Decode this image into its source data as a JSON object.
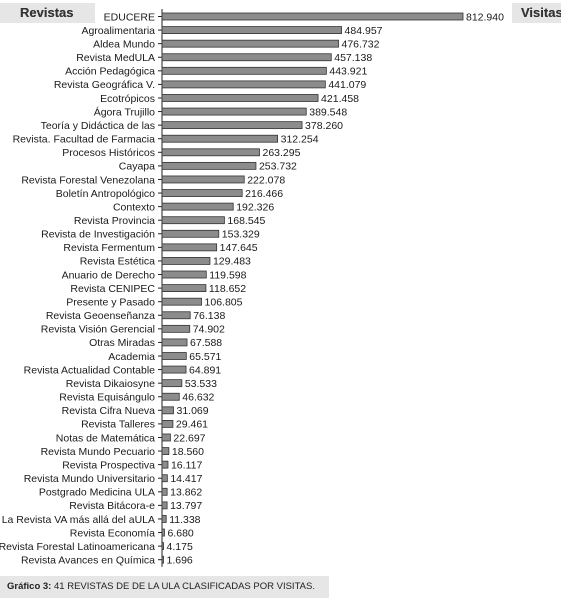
{
  "header": {
    "left_label": "Revistas",
    "right_label": "Visitas"
  },
  "caption": {
    "label": "Gráfico 3:",
    "text": "41 REVISTAS DE DE LA ULA CLASIFICADAS POR VISITAS."
  },
  "colors": {
    "bar_fill": "#8c8c8c",
    "bar_stroke": "#333333",
    "axis": "#222222",
    "header_bg": "#e6e6e6"
  },
  "chart_data": {
    "type": "bar",
    "orientation": "horizontal",
    "categories": [
      "EDUCERE",
      "Agroalimentaria",
      "Aldea Mundo",
      "Revista MedULA",
      "Acción Pedagógica",
      "Revista Geográfica V.",
      "Ecotrópicos",
      "Ágora Trujillo",
      "Teoría y Didáctica de las",
      "Revista. Facultad de Farmacia",
      "Procesos Históricos",
      "Cayapa",
      "Revista Forestal Venezolana",
      "Boletín Antropológico",
      "Contexto",
      "Revista Provincia",
      "Revista de Investigación",
      "Revista Fermentum",
      "Revista Estética",
      "Anuario de Derecho",
      "Revista CENIPEC",
      "Presente y Pasado",
      "Revista Geoenseñanza",
      "Revista Visión Gerencial",
      "Otras Miradas",
      "Academia",
      "Revista Actualidad Contable",
      "Revista Dikaiosyne",
      "Revista Equisángulo",
      "Revista Cifra Nueva",
      "Revista Talleres",
      "Notas de Matemática",
      "Revista Mundo Pecuario",
      "Revista Prospectiva",
      "Revista Mundo Universitario",
      "Postgrado Medicina ULA",
      "Revista Bitácora-e",
      "La Revista VA más allá del aULA",
      "Revista  Economía",
      "Revista  Forestal Latinoamericana",
      "Revista  Avances en Química"
    ],
    "values": [
      812940,
      484957,
      476732,
      457138,
      443921,
      441079,
      421458,
      389548,
      378260,
      312254,
      263295,
      253732,
      222078,
      216466,
      192326,
      168545,
      153329,
      147645,
      129483,
      119598,
      118652,
      106805,
      76138,
      74902,
      67588,
      65571,
      64891,
      53533,
      46632,
      31069,
      29461,
      22697,
      18560,
      16117,
      14417,
      13862,
      13797,
      11338,
      6680,
      4175,
      1696
    ],
    "value_labels": [
      "812.940",
      "484.957",
      "476.732",
      "457.138",
      "443.921",
      "441.079",
      "421.458",
      "389.548",
      "378.260",
      "312.254",
      "263.295",
      "253.732",
      "222.078",
      "216.466",
      "192.326",
      "168.545",
      "153.329",
      "147.645",
      "129.483",
      "119.598",
      "118.652",
      "106.805",
      "76.138",
      "74.902",
      "67.588",
      "65.571",
      "64.891",
      "53.533",
      "46.632",
      "31.069",
      "29.461",
      "22.697",
      "18.560",
      "16.117",
      "14.417",
      "13.862",
      "13.797",
      "11.338",
      "6.680",
      "4.175",
      "1.696"
    ],
    "xlim": [
      0,
      812940
    ],
    "grid": false,
    "legend": false
  }
}
